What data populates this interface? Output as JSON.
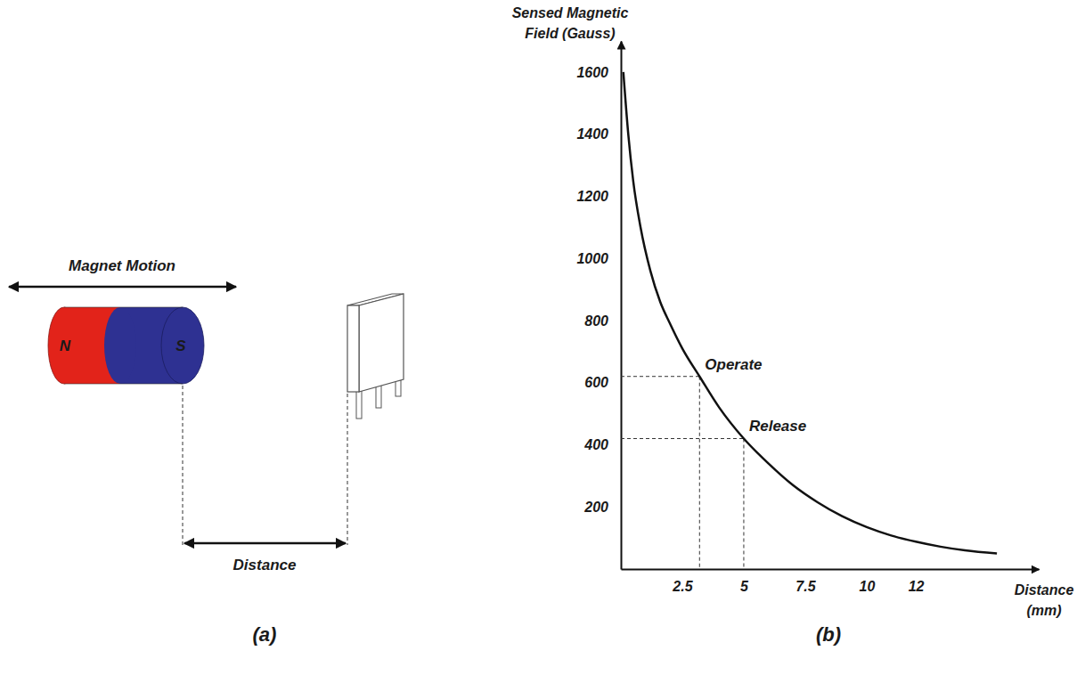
{
  "panel_labels": [
    "(a)",
    "(b)"
  ],
  "diagram": {
    "motion_label": "Magnet Motion",
    "poles": [
      "N",
      "S"
    ],
    "distance_label": "Distance"
  },
  "chart_data": {
    "type": "line",
    "x_label": "Distance (mm)",
    "y_label": "Sensed Magnetic Field (Gauss)",
    "x": [
      0.1,
      0.3,
      0.5,
      0.8,
      1.2,
      1.6,
      2.0,
      2.5,
      3.2,
      4.0,
      5.0,
      6.0,
      7.0,
      8.0,
      9.0,
      10.0,
      11.0,
      12.0,
      13.0,
      14.0,
      15.3
    ],
    "values": [
      1600,
      1400,
      1250,
      1100,
      960,
      860,
      790,
      710,
      620,
      520,
      420,
      340,
      270,
      215,
      170,
      135,
      108,
      88,
      72,
      60,
      50
    ],
    "color": "#111111",
    "xlim": [
      0,
      17
    ],
    "xticks": [
      2.5,
      5,
      7.5,
      10,
      12
    ],
    "ylim": [
      0,
      1700
    ],
    "yticks": [
      200,
      400,
      600,
      800,
      1000,
      1200,
      1400,
      1600
    ],
    "grid": false,
    "annotations": [
      {
        "text": "Operate",
        "x": 3.2,
        "y": 620
      },
      {
        "text": "Release",
        "x": 5,
        "y": 420
      }
    ]
  }
}
